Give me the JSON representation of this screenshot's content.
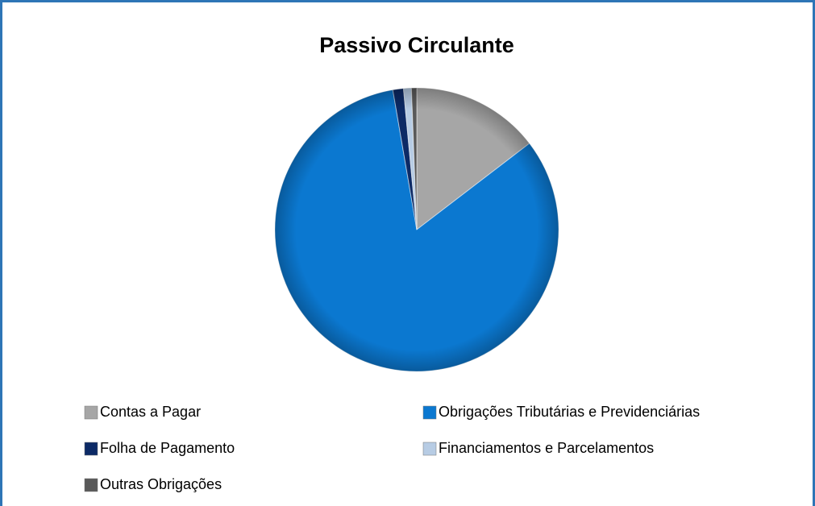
{
  "chart_data": {
    "type": "pie",
    "title": "Passivo Circulante",
    "categories": [
      "Contas a Pagar",
      "Obrigações Tributárias e Previdenciárias",
      "Folha de Pagamento",
      "Financiamentos e Parcelamentos",
      "Outras Obrigações"
    ],
    "values": [
      14.6,
      82.7,
      1.2,
      0.9,
      0.6
    ],
    "colors": [
      "#a6a6a6",
      "#0b78d0",
      "#0c2a66",
      "#b7cce4",
      "#595959"
    ],
    "legend": "bottom"
  }
}
